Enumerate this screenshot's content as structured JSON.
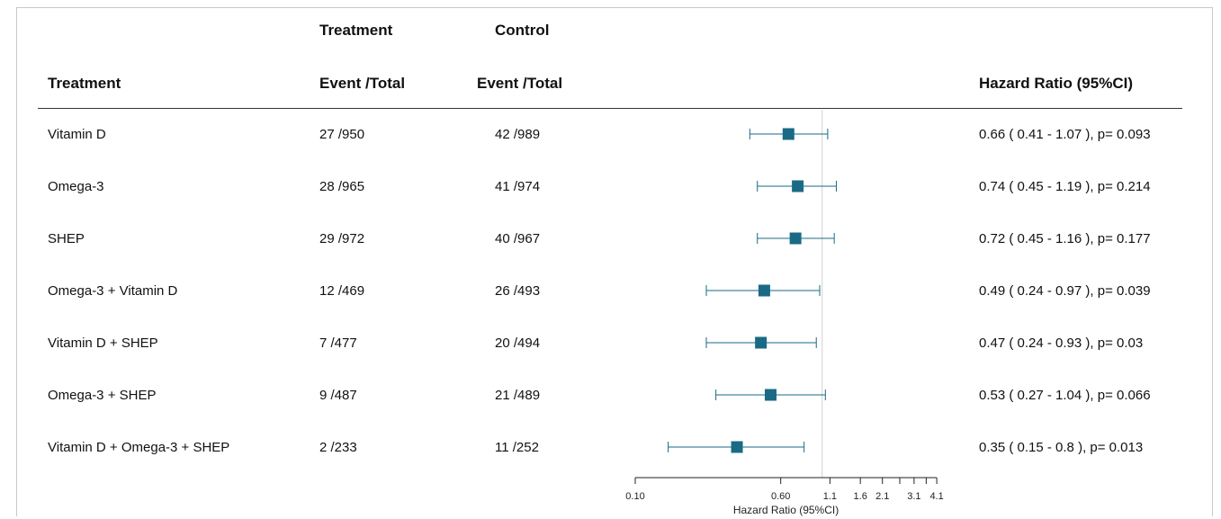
{
  "headers": {
    "treatment_group_top": "Treatment",
    "control_group_top": "Control",
    "treatment_col": "Treatment",
    "treatment_events": "Event /Total",
    "control_events": "Event /Total",
    "hr_col": "Hazard Ratio (95%CI)"
  },
  "rows": [
    {
      "name": "Vitamin D",
      "treatment": "27 /950",
      "control": "42 /989",
      "hr_text": "0.66  ( 0.41 - 1.07 ), p= 0.093"
    },
    {
      "name": "Omega-3",
      "treatment": "28 /965",
      "control": "41 /974",
      "hr_text": "0.74  ( 0.45 - 1.19 ), p= 0.214"
    },
    {
      "name": "SHEP",
      "treatment": "29 /972",
      "control": "40 /967",
      "hr_text": "0.72  ( 0.45 - 1.16 ), p= 0.177"
    },
    {
      "name": "Omega-3 + Vitamin D",
      "treatment": "12 /469",
      "control": "26 /493",
      "hr_text": "0.49  ( 0.24 - 0.97 ), p= 0.039"
    },
    {
      "name": "Vitamin D + SHEP",
      "treatment": "7 /477",
      "control": "20 /494",
      "hr_text": "0.47  ( 0.24 - 0.93 ), p= 0.03"
    },
    {
      "name": "Omega-3 + SHEP",
      "treatment": "9 /487",
      "control": "21 /489",
      "hr_text": "0.53  ( 0.27 - 1.04 ), p= 0.066"
    },
    {
      "name": "Vitamin D + Omega-3 + SHEP",
      "treatment": "2 /233",
      "control": "11 /252",
      "hr_text": "0.35  ( 0.15 - 0.8 ), p= 0.013"
    }
  ],
  "chart_data": {
    "type": "forest",
    "xlabel": "Hazard Ratio (95%CI)",
    "x_scale": "log",
    "xlim": [
      0.1,
      5.0
    ],
    "reference_line": 1.0,
    "x_ticks": [
      0.1,
      0.6,
      1.1,
      1.6,
      2.1,
      3.1,
      4.1
    ],
    "x_tick_labels": [
      "0.10",
      "0.60",
      "1.1",
      "1.6",
      "2.1",
      "3.1",
      "4.1"
    ],
    "x_minor_ticks": [
      2.6,
      3.6
    ],
    "marker_color": "#1a6a86",
    "categories": [
      "Vitamin D",
      "Omega-3",
      "SHEP",
      "Omega-3 + Vitamin D",
      "Vitamin D + SHEP",
      "Omega-3 + SHEP",
      "Vitamin D + Omega-3 + SHEP"
    ],
    "hr": [
      0.66,
      0.74,
      0.72,
      0.49,
      0.47,
      0.53,
      0.35
    ],
    "ci_low": [
      0.41,
      0.45,
      0.45,
      0.24,
      0.24,
      0.27,
      0.15
    ],
    "ci_high": [
      1.07,
      1.19,
      1.16,
      0.97,
      0.93,
      1.04,
      0.8
    ]
  }
}
